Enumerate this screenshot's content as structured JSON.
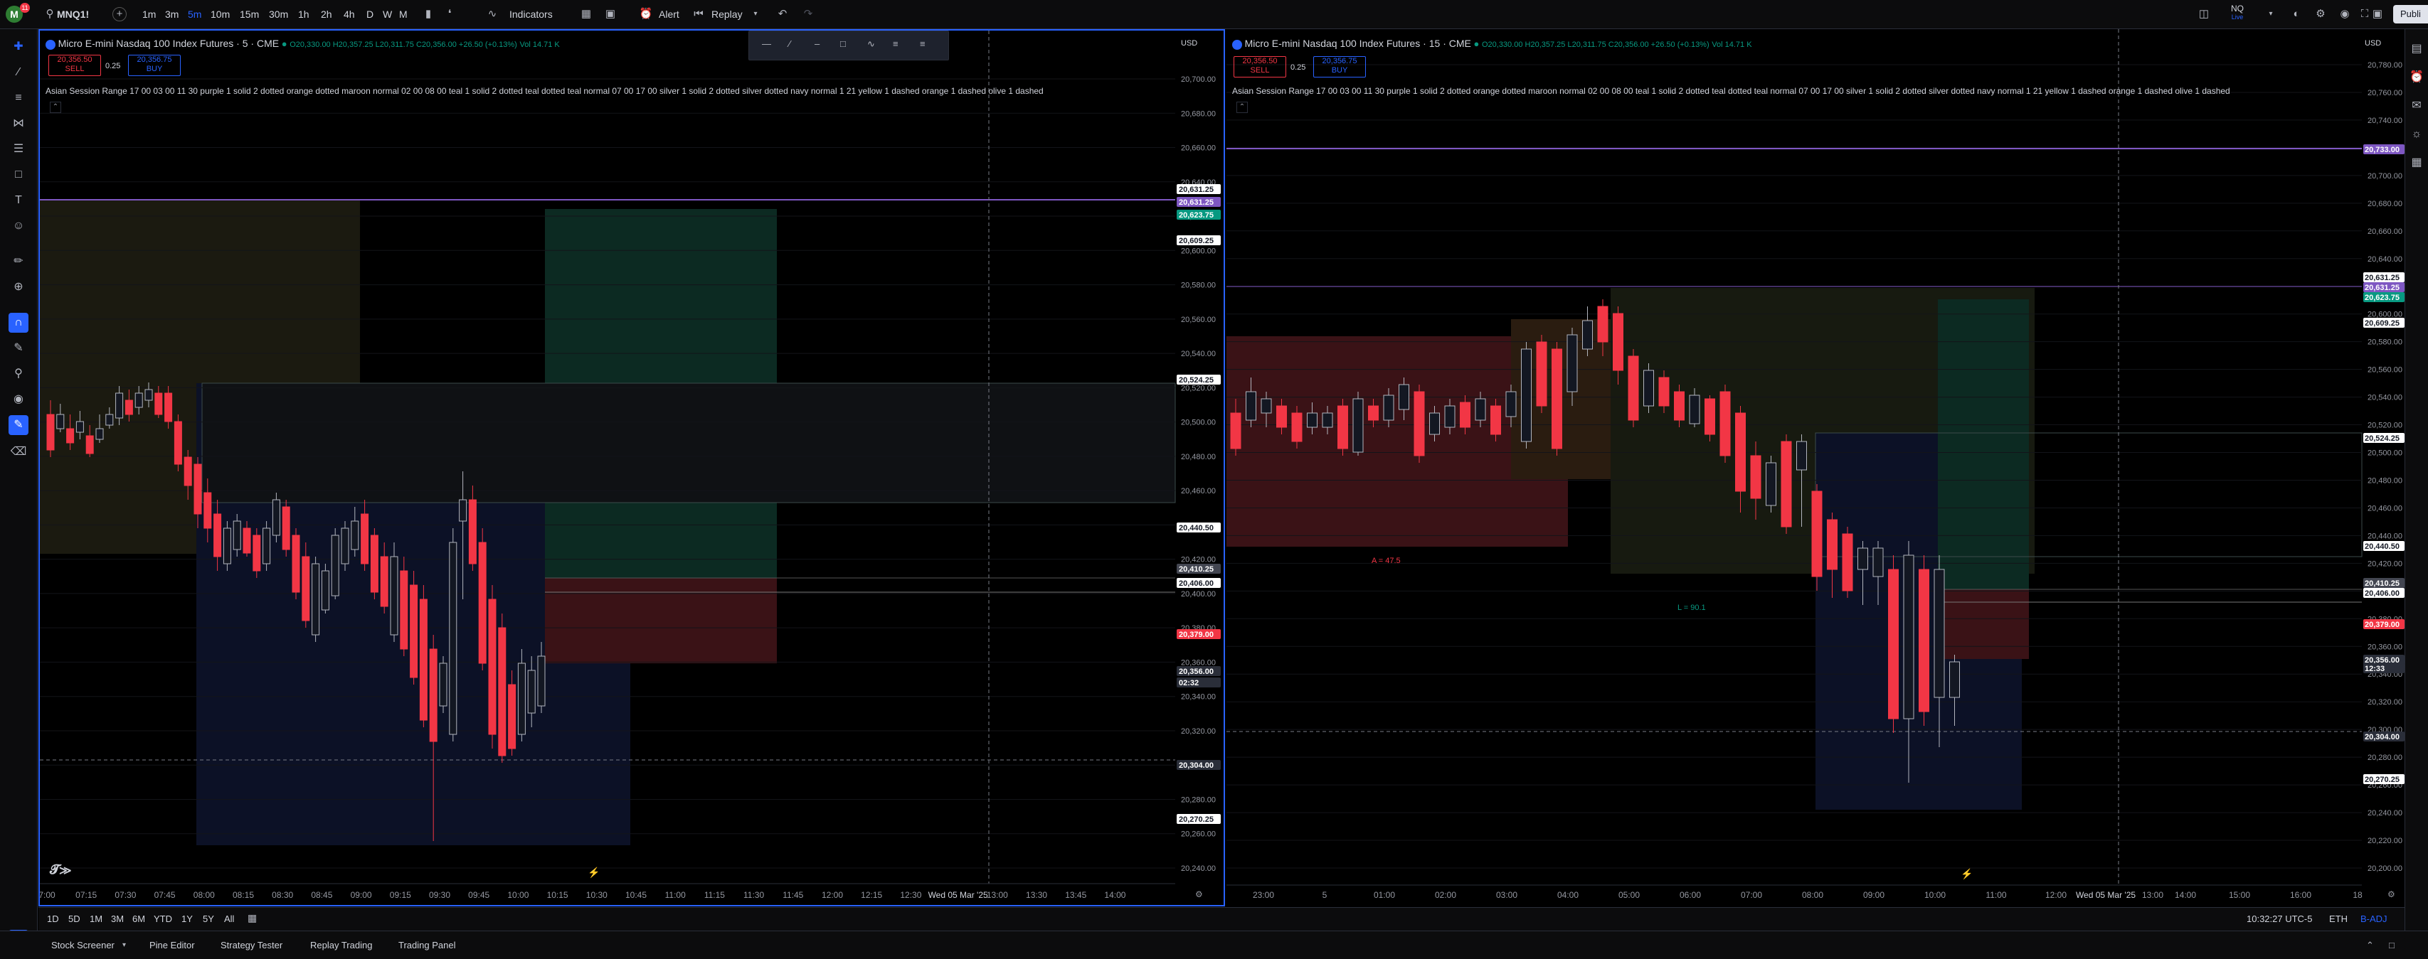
{
  "topbar": {
    "avatar_letter": "M",
    "notif_count": "11",
    "symbol": "MNQ1!",
    "intervals": [
      "1m",
      "3m",
      "5m",
      "10m",
      "15m",
      "30m",
      "1h",
      "2h",
      "4h",
      "D",
      "W",
      "M"
    ],
    "active_interval": "5m",
    "indicators_label": "Indicators",
    "alert_label": "Alert",
    "replay_label": "Replay",
    "symbol_short": "NQ",
    "symbol_short_sub": "Live",
    "publish_label": "Publi"
  },
  "left_panel": {
    "title": "Micro E-mini Nasdaq 100 Index Futures · 5 · CME",
    "ohlc": "O20,330.00 H20,357.25 L20,311.75 C20,356.00 +26.50 (+0.13%)",
    "vol": "Vol 14.71 K",
    "sell_price": "20,356.50",
    "sell_label": "SELL",
    "spread": "0.25",
    "buy_price": "20,356.75",
    "buy_label": "BUY",
    "indicator_line": "Asian Session Range 17 00 03 00 11 30 purple 1 solid 2 dotted orange dotted maroon normal 02 00 08 00 teal 1 solid 2 dotted teal dotted teal normal 07 00 17 00 silver 1 solid 2 dotted silver dotted navy normal 1 21 yellow 1 dashed orange 1 dashed olive 1 dashed",
    "currency": "USD",
    "y_labels": [
      "20,700.00",
      "20,680.00",
      "20,660.00",
      "20,640.00",
      "20,620.00",
      "20,600.00",
      "20,580.00",
      "20,560.00",
      "20,540.00",
      "20,520.00",
      "20,500.00",
      "20,480.00",
      "20,460.00",
      "20,440.00",
      "20,420.00",
      "20,400.00",
      "20,380.00",
      "20,360.00",
      "20,340.00",
      "20,320.00",
      "20,300.00",
      "20,280.00",
      "20,260.00",
      "20,240.00"
    ],
    "x_labels": [
      "7:00",
      "07:15",
      "07:30",
      "07:45",
      "08:00",
      "08:15",
      "08:30",
      "08:45",
      "09:00",
      "09:15",
      "09:30",
      "09:45",
      "10:00",
      "10:15",
      "10:30",
      "10:45",
      "11:00",
      "11:15",
      "11:30",
      "11:45",
      "12:00",
      "12:15",
      "12:30",
      "Wed 05 Mar '25",
      "13:00",
      "13:30",
      "13:45",
      "14:00"
    ],
    "tags": [
      {
        "text": "20,631.25",
        "kind": "white"
      },
      {
        "text": "20,631.25",
        "kind": "purple"
      },
      {
        "text": "20,623.75",
        "kind": "teal"
      },
      {
        "text": "20,609.25",
        "kind": "white"
      },
      {
        "text": "20,524.25",
        "kind": "white"
      },
      {
        "text": "20,440.50",
        "kind": "white"
      },
      {
        "text": "20,410.25",
        "kind": "gray"
      },
      {
        "text": "20,406.00",
        "kind": "white"
      },
      {
        "text": "20,379.00",
        "kind": "red"
      },
      {
        "text": "20,356.00",
        "kind": "dark"
      },
      {
        "text": "02:32",
        "kind": "dark"
      },
      {
        "text": "20,304.00",
        "kind": "dark"
      },
      {
        "text": "20,270.25",
        "kind": "white"
      }
    ]
  },
  "right_panel": {
    "title": "Micro E-mini Nasdaq 100 Index Futures · 15 · CME",
    "ohlc": "O20,330.00 H20,357.25 L20,311.75 C20,356.00 +26.50 (+0.13%)",
    "vol": "Vol 14.71 K",
    "sell_price": "20,356.50",
    "sell_label": "SELL",
    "spread": "0.25",
    "buy_price": "20,356.75",
    "buy_label": "BUY",
    "indicator_line": "Asian Session Range 17 00 03 00 11 30 purple 1 solid 2 dotted orange dotted maroon normal 02 00 08 00 teal 1 solid 2 dotted teal dotted teal normal 07 00 17 00 silver 1 solid 2 dotted silver dotted navy normal 1 21 yellow 1 dashed orange 1 dashed olive 1 dashed",
    "currency": "USD",
    "y_labels": [
      "20,780.00",
      "20,760.00",
      "20,740.00",
      "20,720.00",
      "20,700.00",
      "20,680.00",
      "20,660.00",
      "20,640.00",
      "20,620.00",
      "20,600.00",
      "20,580.00",
      "20,560.00",
      "20,540.00",
      "20,520.00",
      "20,500.00",
      "20,480.00",
      "20,460.00",
      "20,440.00",
      "20,420.00",
      "20,400.00",
      "20,380.00",
      "20,360.00",
      "20,340.00",
      "20,320.00",
      "20,300.00",
      "20,280.00",
      "20,260.00",
      "20,240.00",
      "20,220.00",
      "20,200.00"
    ],
    "x_labels": [
      "23:00",
      "5",
      "01:00",
      "02:00",
      "03:00",
      "04:00",
      "05:00",
      "06:00",
      "07:00",
      "08:00",
      "09:00",
      "10:00",
      "11:00",
      "12:00",
      "Wed 05 Mar '25",
      "13:00",
      "14:00",
      "15:00",
      "16:00",
      "18"
    ],
    "tags": [
      {
        "text": "20,733.00",
        "kind": "purple"
      },
      {
        "text": "20,631.25",
        "kind": "white"
      },
      {
        "text": "20,631.25",
        "kind": "purple"
      },
      {
        "text": "20,623.75",
        "kind": "teal"
      },
      {
        "text": "20,609.25",
        "kind": "white"
      },
      {
        "text": "20,524.25",
        "kind": "white"
      },
      {
        "text": "20,440.50",
        "kind": "white"
      },
      {
        "text": "20,410.25",
        "kind": "gray"
      },
      {
        "text": "20,406.00",
        "kind": "white"
      },
      {
        "text": "20,379.00",
        "kind": "red"
      },
      {
        "text": "20,356.00",
        "kind": "dark"
      },
      {
        "text": "12:33",
        "kind": "dark"
      },
      {
        "text": "20,304.00",
        "kind": "dark"
      },
      {
        "text": "20,270.25",
        "kind": "white"
      }
    ],
    "annotations": [
      "A = 47.5",
      "L = 90.1"
    ]
  },
  "timeframes": [
    "1D",
    "5D",
    "1M",
    "3M",
    "6M",
    "YTD",
    "1Y",
    "5Y",
    "All"
  ],
  "status": {
    "time": "10:32:27 UTC-5",
    "session": "ETH",
    "adj": "B-ADJ"
  },
  "bottom_tabs": [
    "Stock Screener",
    "Pine Editor",
    "Strategy Tester",
    "Replay Trading",
    "Trading Panel"
  ],
  "colors": {
    "bull": "#131722",
    "bull_border": "#b2b5be",
    "bear": "#f23645",
    "purple": "#7e57c2",
    "teal": "#089981",
    "accent": "#2962ff"
  }
}
